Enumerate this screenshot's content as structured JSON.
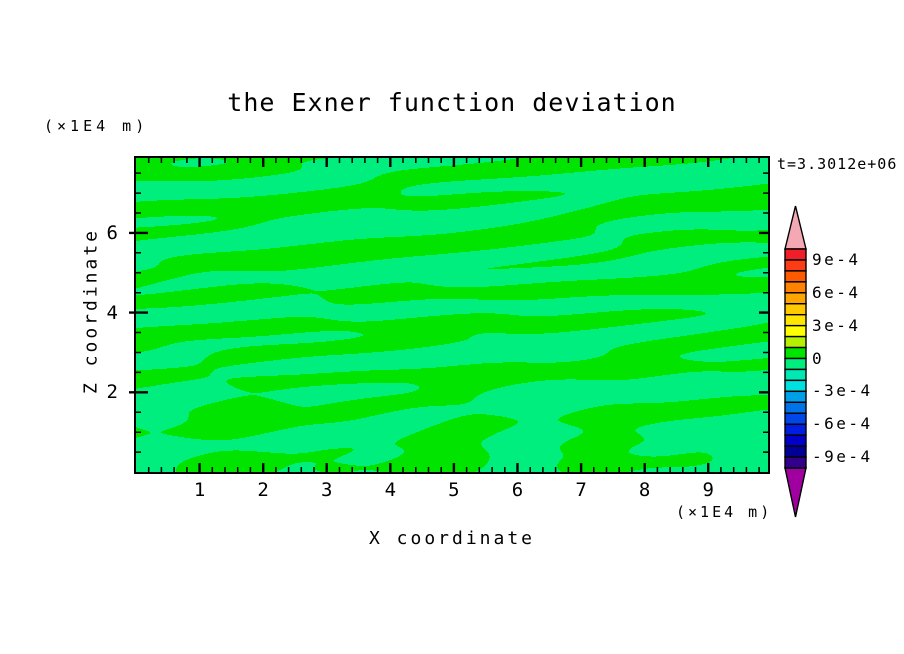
{
  "title": "the Exner function deviation",
  "timestamp_label": "t=3.3012e+06",
  "axes": {
    "x": {
      "label": "X coordinate",
      "unit_note": "(×1E4 m)",
      "tick_labels": [
        "1",
        "2",
        "3",
        "4",
        "5",
        "6",
        "7",
        "8",
        "9"
      ],
      "tick_values": [
        1,
        2,
        3,
        4,
        5,
        6,
        7,
        8,
        9
      ],
      "minor_step": 0.2,
      "min": 0,
      "max": 9.94
    },
    "z": {
      "label": "Z coordinate",
      "unit_note": "(×1E4 m)",
      "tick_labels": [
        "2",
        "4",
        "6"
      ],
      "tick_values": [
        2,
        4,
        6
      ],
      "minor_step": 0.5,
      "min": 0,
      "max": 7.88
    }
  },
  "colorbar": {
    "boundary_labels": [
      "9e-4",
      "6e-4",
      "3e-4",
      "0",
      "-3e-4",
      "-6e-4",
      "-9e-4"
    ],
    "segments_per_label_gap": 3,
    "contour_interval": 0.0001,
    "arrow_top_color": "#f4a8b4",
    "arrow_bottom_color": "#a000a0",
    "segment_colors": [
      "#f01e28",
      "#fb3c14",
      "#ff5a00",
      "#ff8200",
      "#ffa500",
      "#ffc800",
      "#ffe600",
      "#ffff00",
      "#b4f000",
      "#00e400",
      "#00ee7d",
      "#00e8b4",
      "#00e0e0",
      "#00a0e8",
      "#0073e8",
      "#0046e8",
      "#001ee0",
      "#0000c8",
      "#000096",
      "#32008c"
    ],
    "outline_color": "#000000"
  },
  "chart_data": {
    "type": "heatmap",
    "subtype": "filled-contour",
    "title": "the Exner function deviation",
    "xlabel": "X coordinate (×1E4 m)",
    "ylabel": "Z coordinate (×1E4 m)",
    "time_annotation": "t=3.3012e+06",
    "x_range": [
      0,
      9.94
    ],
    "z_range": [
      0,
      7.88
    ],
    "contour_interval": 0.0001,
    "colorbar_value_labels": [
      "9e-4",
      "6e-4",
      "3e-4",
      "0",
      "-3e-4",
      "-6e-4",
      "-9e-4"
    ],
    "value_range_visible": [
      -0.0001,
      0.0001
    ],
    "levels_shown": [
      {
        "range": "0 to 1e-4",
        "color": "#00e400",
        "appearance": "elongated horizontal streaks and large bottom blobs"
      },
      {
        "range": "-1e-4 to 0",
        "color": "#00ee7d",
        "appearance": "background"
      }
    ],
    "colors": {
      "positive": "#00e400",
      "negative": "#00ee7d"
    },
    "field": {
      "description": "sign of spectral sum selects positive/negative color; u,v in [0,1], v from top",
      "scale": 2e-05,
      "bias": -0.12,
      "modes": [
        {
          "a": 0.9,
          "px": 0.4,
          "pz": 7.3,
          "ph": 0.2
        },
        {
          "a": 0.75,
          "px": 1.3,
          "pz": 4.6,
          "ph": 1.9
        },
        {
          "a": 0.6,
          "px": 2.2,
          "pz": 9.7,
          "ph": 4.1
        },
        {
          "a": 0.5,
          "px": 0.8,
          "pz": 12.4,
          "ph": 2.6
        },
        {
          "a": 0.65,
          "px": 1.8,
          "pz": 6.2,
          "ph": 5.3
        },
        {
          "a": 0.45,
          "px": 3.5,
          "pz": 8.6,
          "ph": 0.8
        },
        {
          "a": 0.5,
          "px": 0.25,
          "pz": 10.8,
          "ph": 3.6
        },
        {
          "a": 0.35,
          "px": 4.2,
          "pz": 5.4,
          "ph": 2.2
        },
        {
          "a": 0.3,
          "px": 2.8,
          "pz": 13.6,
          "ph": 5.9
        },
        {
          "a": 2.3,
          "px": 3.3,
          "pz": 0.6,
          "ph": 0.9,
          "env": "bottom"
        },
        {
          "a": 1.6,
          "px": 5.1,
          "pz": 1.1,
          "ph": 3.8,
          "env": "bottom"
        }
      ]
    }
  }
}
